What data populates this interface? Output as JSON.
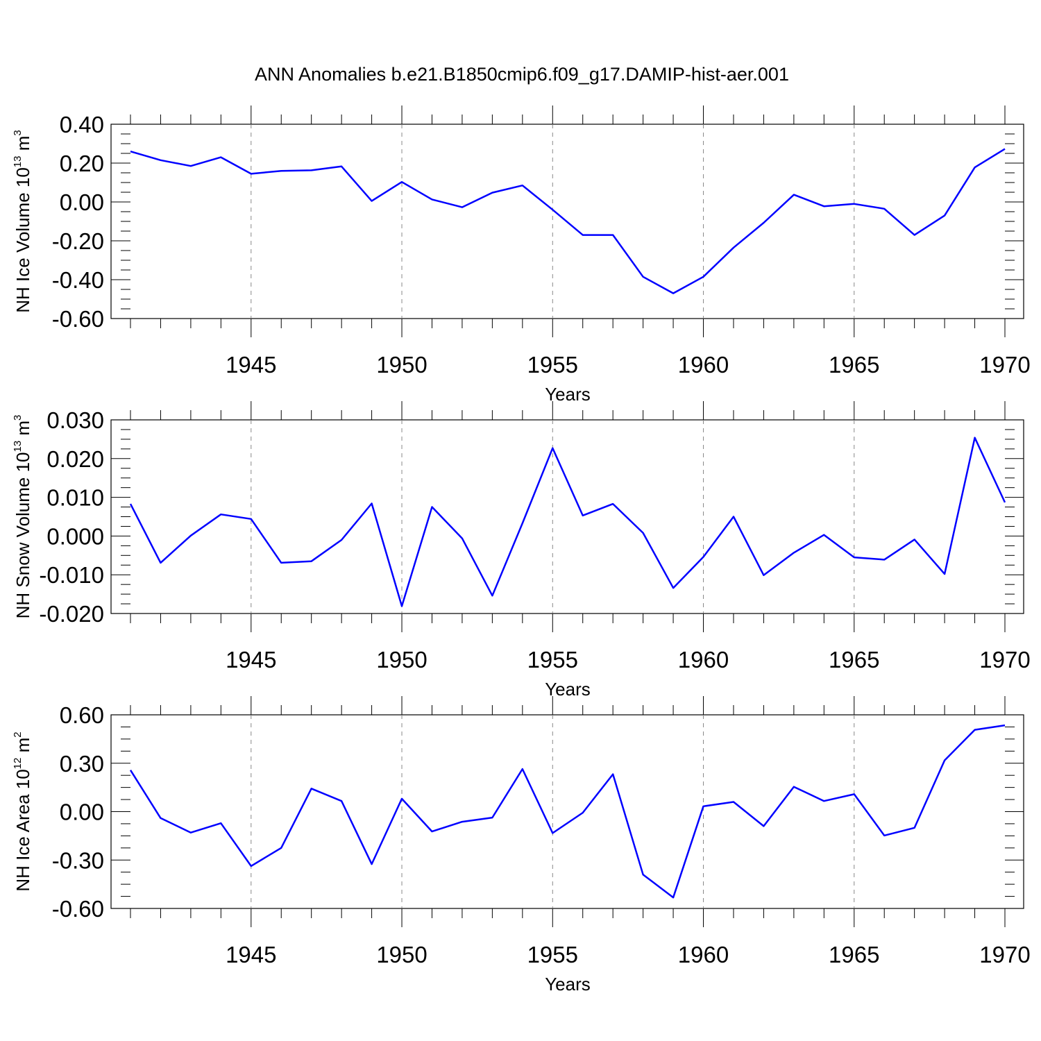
{
  "figure": {
    "title": "ANN Anomalies b.e21.B1850cmip6.f09_g17.DAMIP-hist-aer.001"
  },
  "chart_data": [
    {
      "type": "line",
      "title": "",
      "xlabel": "Years",
      "ylabel": {
        "prefix": "NH Ice Volume 10",
        "exp": "13",
        "unit": " m",
        "unit_exp": "3"
      },
      "xlim": [
        1941,
        1970
      ],
      "ylim": [
        -0.6,
        0.4
      ],
      "xticks": [
        1945,
        1950,
        1955,
        1960,
        1965,
        1970
      ],
      "yticks": [
        -0.6,
        -0.4,
        -0.2,
        0.0,
        0.2,
        0.4
      ],
      "ytick_labels": [
        "-0.60",
        "-0.40",
        "-0.20",
        "0.00",
        "0.20",
        "0.40"
      ],
      "grid": "vertical dashed at major x ticks",
      "color": "#0000ff",
      "x": [
        1941,
        1942,
        1943,
        1944,
        1945,
        1946,
        1947,
        1948,
        1949,
        1950,
        1951,
        1952,
        1953,
        1954,
        1955,
        1956,
        1957,
        1958,
        1959,
        1960,
        1961,
        1962,
        1963,
        1964,
        1965,
        1966,
        1967,
        1968,
        1969,
        1970
      ],
      "series": [
        {
          "values": [
            0.26,
            0.215,
            0.185,
            0.23,
            0.145,
            0.16,
            0.163,
            0.183,
            0.005,
            0.103,
            0.013,
            -0.027,
            0.048,
            0.085,
            -0.04,
            -0.17,
            -0.17,
            -0.385,
            -0.47,
            -0.385,
            -0.235,
            -0.107,
            0.037,
            -0.022,
            -0.01,
            -0.035,
            -0.17,
            -0.07,
            0.178,
            0.273
          ]
        }
      ]
    },
    {
      "type": "line",
      "title": "",
      "xlabel": "Years",
      "ylabel": {
        "prefix": "NH Snow Volume 10",
        "exp": "13",
        "unit": " m",
        "unit_exp": "3"
      },
      "xlim": [
        1941,
        1970
      ],
      "ylim": [
        -0.02,
        0.03
      ],
      "xticks": [
        1945,
        1950,
        1955,
        1960,
        1965,
        1970
      ],
      "yticks": [
        -0.02,
        -0.01,
        0.0,
        0.01,
        0.02,
        0.03
      ],
      "ytick_labels": [
        "-0.020",
        "-0.010",
        "0.000",
        "0.010",
        "0.020",
        "0.030"
      ],
      "grid": "vertical dashed at major x ticks",
      "color": "#0000ff",
      "x": [
        1941,
        1942,
        1943,
        1944,
        1945,
        1946,
        1947,
        1948,
        1949,
        1950,
        1951,
        1952,
        1953,
        1954,
        1955,
        1956,
        1957,
        1958,
        1959,
        1960,
        1961,
        1962,
        1963,
        1964,
        1965,
        1966,
        1967,
        1968,
        1969,
        1970
      ],
      "series": [
        {
          "values": [
            0.0083,
            -0.0069,
            0.0001,
            0.0056,
            0.0044,
            -0.0069,
            -0.0065,
            -0.001,
            0.0084,
            -0.0181,
            0.0075,
            -0.0006,
            -0.0154,
            0.0033,
            0.0227,
            0.0053,
            0.0083,
            0.0008,
            -0.0134,
            -0.0054,
            0.005,
            -0.0101,
            -0.0043,
            0.0003,
            -0.0055,
            -0.0061,
            -0.0009,
            -0.0098,
            0.0254,
            0.0087
          ]
        }
      ]
    },
    {
      "type": "line",
      "title": "",
      "xlabel": "Years",
      "ylabel": {
        "prefix": "NH Ice Area 10",
        "exp": "12",
        "unit": " m",
        "unit_exp": "2"
      },
      "xlim": [
        1941,
        1970
      ],
      "ylim": [
        -0.6,
        0.6
      ],
      "xticks": [
        1945,
        1950,
        1955,
        1960,
        1965,
        1970
      ],
      "yticks": [
        -0.6,
        -0.3,
        0.0,
        0.3,
        0.6
      ],
      "ytick_labels": [
        "-0.60",
        "-0.30",
        "0.00",
        "0.30",
        "0.60"
      ],
      "grid": "vertical dashed at major x ticks",
      "color": "#0000ff",
      "x": [
        1941,
        1942,
        1943,
        1944,
        1945,
        1946,
        1947,
        1948,
        1949,
        1950,
        1951,
        1952,
        1953,
        1954,
        1955,
        1956,
        1957,
        1958,
        1959,
        1960,
        1961,
        1962,
        1963,
        1964,
        1965,
        1966,
        1967,
        1968,
        1969,
        1970
      ],
      "series": [
        {
          "values": [
            0.257,
            -0.04,
            -0.13,
            -0.072,
            -0.337,
            -0.225,
            0.143,
            0.066,
            -0.325,
            0.08,
            -0.123,
            -0.063,
            -0.037,
            0.264,
            -0.133,
            -0.007,
            0.232,
            -0.39,
            -0.532,
            0.033,
            0.06,
            -0.09,
            0.154,
            0.066,
            0.108,
            -0.148,
            -0.1,
            0.318,
            0.507,
            0.535
          ]
        }
      ]
    }
  ]
}
